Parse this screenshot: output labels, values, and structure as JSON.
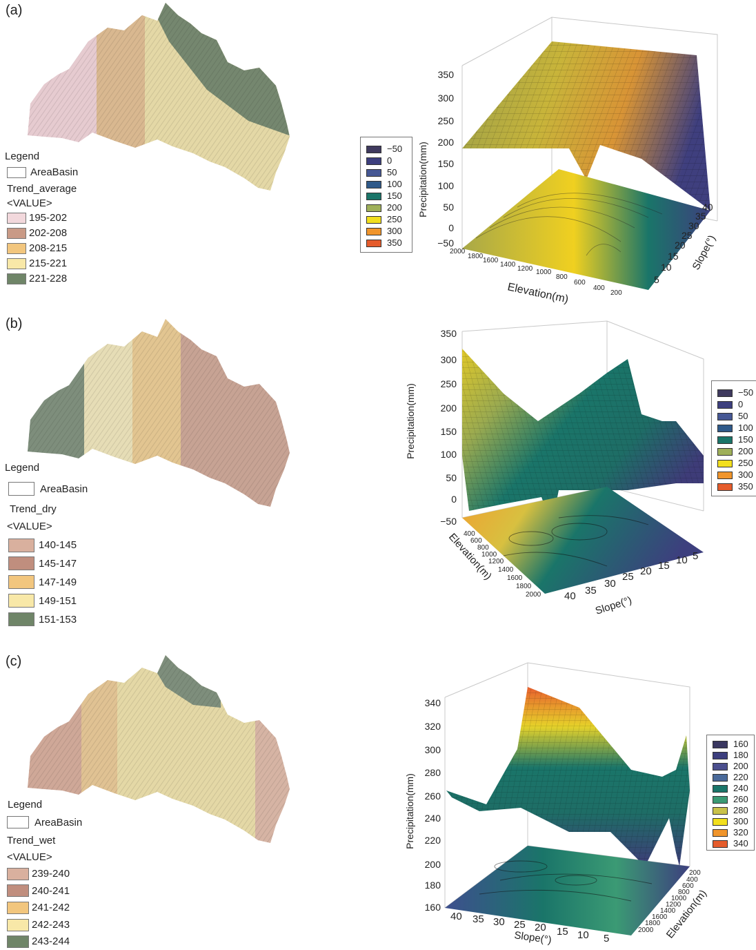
{
  "colors": {
    "frame": "#c8c8c8",
    "map_pink": "#e6cbd0",
    "map_brown": "#c99f88",
    "map_tan": "#e2c591",
    "map_pale": "#e9dca9",
    "map_green": "#7e8e7c",
    "surf_low": "#3e3c78",
    "surf_mid": "#136f68",
    "surf_high": "#e6d22a",
    "surf_peak": "#e8602e"
  },
  "panels": [
    {
      "label": "(a)",
      "legend": {
        "title": "Legend",
        "basin_label": "AreaBasin",
        "trend_label": "Trend_average",
        "value_label": "<VALUE>",
        "items": [
          {
            "label": "195-202",
            "color": "#f2d8dc"
          },
          {
            "label": "202-208",
            "color": "#c99a86"
          },
          {
            "label": "208-215",
            "color": "#f2c67e"
          },
          {
            "label": "215-221",
            "color": "#f8e8a8"
          },
          {
            "label": "221-228",
            "color": "#6f8568"
          }
        ]
      },
      "plot": {
        "z_title": "Precipitation(mm)",
        "z_ticks": [
          "350",
          "300",
          "250",
          "200",
          "150",
          "100",
          "50",
          "0",
          "−50"
        ],
        "axis_elev_title": "Elevation(m)",
        "axis_elev_ticks": [
          "2000",
          "1800",
          "1600",
          "1400",
          "1200",
          "1000",
          "800",
          "600",
          "400",
          "200"
        ],
        "axis_slope_title": "Slope(°)",
        "axis_slope_ticks": [
          "5",
          "10",
          "15",
          "20",
          "25",
          "30",
          "35",
          "40"
        ]
      },
      "colorbar": [
        {
          "label": "−50",
          "color": "#3f3a5e"
        },
        {
          "label": "0",
          "color": "#3d3f7e"
        },
        {
          "label": "50",
          "color": "#465895"
        },
        {
          "label": "100",
          "color": "#2f5a8a"
        },
        {
          "label": "150",
          "color": "#1a7569"
        },
        {
          "label": "200",
          "color": "#9fb05a"
        },
        {
          "label": "250",
          "color": "#f2df1e"
        },
        {
          "label": "300",
          "color": "#f0952c"
        },
        {
          "label": "350",
          "color": "#e55c2c"
        }
      ]
    },
    {
      "label": "(b)",
      "legend": {
        "title": "Legend",
        "basin_label": "AreaBasin",
        "trend_label": "Trend_dry",
        "value_label": "<VALUE>",
        "items": [
          {
            "label": "140-145",
            "color": "#d9b09e"
          },
          {
            "label": "145-147",
            "color": "#c08e7e"
          },
          {
            "label": "147-149",
            "color": "#f2c67e"
          },
          {
            "label": "149-151",
            "color": "#f8e8a8"
          },
          {
            "label": "151-153",
            "color": "#6f8568"
          }
        ]
      },
      "plot": {
        "z_title": "Precipitation(mm)",
        "z_ticks": [
          "350",
          "300",
          "250",
          "200",
          "150",
          "100",
          "50",
          "0",
          "−50"
        ],
        "axis_elev_title": "Elevation(m)",
        "axis_elev_ticks": [
          "400",
          "600",
          "800",
          "1000",
          "1200",
          "1400",
          "1600",
          "1800",
          "2000"
        ],
        "axis_slope_title": "Slope(°)",
        "axis_slope_ticks": [
          "40",
          "35",
          "30",
          "25",
          "20",
          "15",
          "10",
          "5"
        ]
      },
      "colorbar": [
        {
          "label": "−50",
          "color": "#3f3a5e"
        },
        {
          "label": "0",
          "color": "#3d3f7e"
        },
        {
          "label": "50",
          "color": "#465895"
        },
        {
          "label": "100",
          "color": "#2f5a8a"
        },
        {
          "label": "150",
          "color": "#1a7569"
        },
        {
          "label": "200",
          "color": "#9fb05a"
        },
        {
          "label": "250",
          "color": "#f2df1e"
        },
        {
          "label": "300",
          "color": "#f0952c"
        },
        {
          "label": "350",
          "color": "#e55c2c"
        }
      ]
    },
    {
      "label": "(c)",
      "legend": {
        "title": "Legend",
        "basin_label": "AreaBasin",
        "trend_label": "Trend_wet",
        "value_label": "<VALUE>",
        "items": [
          {
            "label": "239-240",
            "color": "#d9b09e"
          },
          {
            "label": "240-241",
            "color": "#c08e7e"
          },
          {
            "label": "241-242",
            "color": "#f2c67e"
          },
          {
            "label": "242-243",
            "color": "#f8e8a8"
          },
          {
            "label": "243-244",
            "color": "#6f8568"
          }
        ]
      },
      "plot": {
        "z_title": "Precipitation(mm)",
        "z_ticks": [
          "340",
          "320",
          "300",
          "280",
          "260",
          "240",
          "220",
          "200",
          "180",
          "160"
        ],
        "axis_elev_title": "Elevation(m)",
        "axis_elev_ticks": [
          "200",
          "400",
          "600",
          "800",
          "1000",
          "1200",
          "1400",
          "1600",
          "1800",
          "2000"
        ],
        "axis_slope_title": "Slope(°)",
        "axis_slope_ticks": [
          "40",
          "35",
          "30",
          "25",
          "20",
          "15",
          "10",
          "5"
        ]
      },
      "colorbar": [
        {
          "label": "160",
          "color": "#3a3760"
        },
        {
          "label": "180",
          "color": "#3d3f7e"
        },
        {
          "label": "200",
          "color": "#4b4f8e"
        },
        {
          "label": "220",
          "color": "#4a6a9a"
        },
        {
          "label": "240",
          "color": "#1a7569"
        },
        {
          "label": "260",
          "color": "#3b9a74"
        },
        {
          "label": "280",
          "color": "#c9c24a"
        },
        {
          "label": "300",
          "color": "#f2df1e"
        },
        {
          "label": "320",
          "color": "#f0952c"
        },
        {
          "label": "340",
          "color": "#e55c2c"
        }
      ]
    }
  ]
}
